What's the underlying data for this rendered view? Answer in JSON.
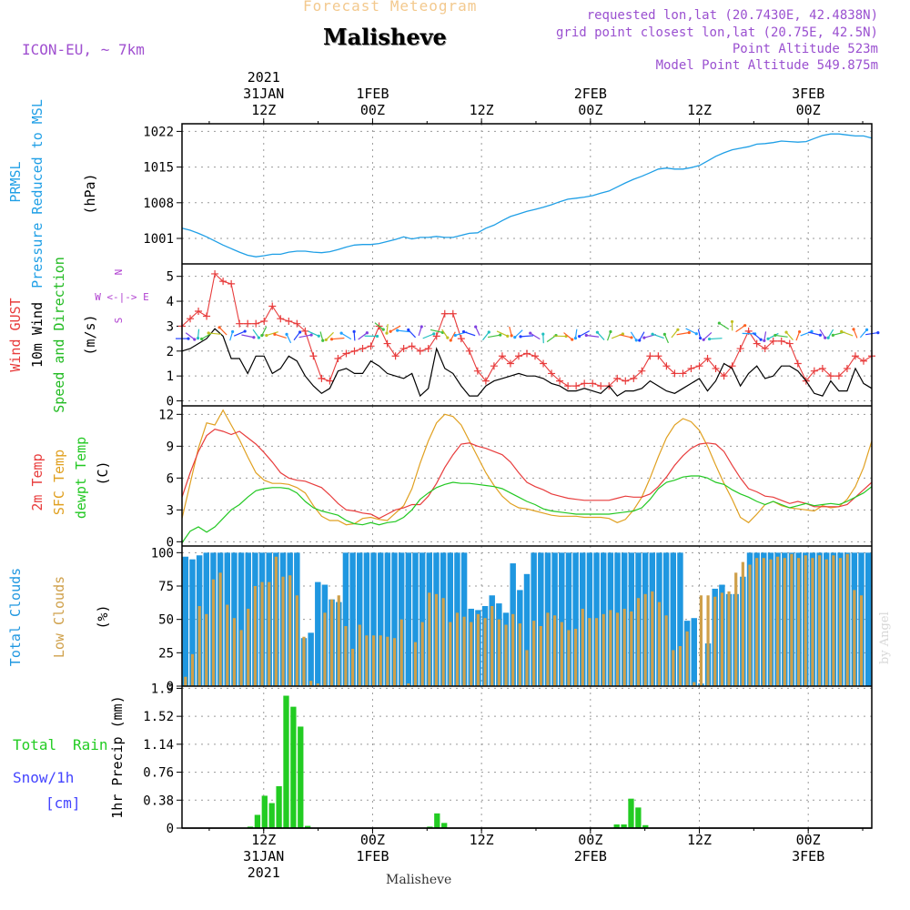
{
  "header": {
    "subtitle": "Forecast Meteogram",
    "title": "Malisheve",
    "model": "ICON-EU, ~ 7km",
    "requested": "requested lon,lat (20.7430E, 42.4838N)",
    "gridpoint": "grid point closest lon,lat (20.75E, 42.5N)",
    "point_alt": "Point Altitude 523m",
    "model_alt": "Model Point Altitude 549.875m",
    "footer": "Malisheve",
    "credit": "by Angel"
  },
  "colors": {
    "pressure": "#1f9fe6",
    "gust": "#e83c3c",
    "wind": "#000000",
    "wind_dir_label": "#22bb22",
    "compass": "#b040d0",
    "temp2m": "#e83c3c",
    "sfc": "#e0a020",
    "dewpt": "#22c822",
    "total_clouds": "#1f97e0",
    "low_clouds": "#cfa04a",
    "rain": "#22cc22",
    "snow": "#4444ff",
    "meta": "#9a50d0",
    "grid": "#9a9a9a"
  },
  "chart_data": [
    {
      "type": "x-axis",
      "top_labels": [
        {
          "lines": [
            "2021",
            "31JAN",
            "12Z"
          ]
        },
        {
          "lines": [
            "1FEB",
            "00Z"
          ]
        },
        {
          "lines": [
            "12Z"
          ]
        },
        {
          "lines": [
            "2FEB",
            "00Z"
          ]
        },
        {
          "lines": [
            "12Z"
          ]
        },
        {
          "lines": [
            "3FEB",
            "00Z"
          ]
        }
      ],
      "bottom_labels": [
        {
          "lines": [
            "12Z",
            "31JAN",
            "2021"
          ]
        },
        {
          "lines": [
            "00Z",
            "1FEB"
          ]
        },
        {
          "lines": [
            "12Z"
          ]
        },
        {
          "lines": [
            "00Z",
            "2FEB"
          ]
        },
        {
          "lines": [
            "12Z"
          ]
        },
        {
          "lines": [
            "00Z",
            "3FEB"
          ]
        }
      ],
      "tick_hours": [
        12,
        24,
        36,
        48,
        60,
        72
      ],
      "hour_range": [
        3,
        79
      ]
    },
    {
      "type": "line",
      "panel": "pressure",
      "ylabel_lines": [
        "PRMSL",
        "Pressure Reduced to MSL",
        "(hPa)"
      ],
      "ylim": [
        996,
        1023.5
      ],
      "ticks": [
        1001,
        1008,
        1015,
        1022
      ],
      "series": [
        {
          "values": [
            1003.0,
            1002.6,
            1002.0,
            1001.3,
            1000.5,
            999.7,
            999.0,
            998.3,
            997.7,
            997.4,
            997.6,
            997.9,
            997.9,
            998.3,
            998.5,
            998.5,
            998.3,
            998.2,
            998.4,
            998.8,
            999.3,
            999.7,
            999.8,
            999.8,
            1000.0,
            1000.4,
            1000.8,
            1001.3,
            1000.9,
            1001.2,
            1001.2,
            1001.4,
            1001.2,
            1001.2,
            1001.6,
            1002.0,
            1002.1,
            1003.0,
            1003.6,
            1004.5,
            1005.3,
            1005.8,
            1006.3,
            1006.7,
            1007.1,
            1007.6,
            1008.2,
            1008.7,
            1008.9,
            1009.1,
            1009.4,
            1009.9,
            1010.3,
            1011.1,
            1011.9,
            1012.6,
            1013.2,
            1013.9,
            1014.6,
            1014.8,
            1014.6,
            1014.6,
            1014.9,
            1015.3,
            1016.2,
            1017.1,
            1017.8,
            1018.4,
            1018.7,
            1019.0,
            1019.5,
            1019.6,
            1019.8,
            1020.1,
            1020.0,
            1019.9,
            1020.0,
            1020.6,
            1021.2,
            1021.5,
            1021.5,
            1021.3,
            1021.1,
            1021.1,
            1020.7
          ]
        }
      ]
    },
    {
      "type": "line",
      "panel": "wind",
      "ylabel_lines": [
        "Wind GUST",
        "10m Wind",
        "Speed and Direction",
        "(m/s)"
      ],
      "compass": [
        "N",
        "W <-|-> E",
        "S"
      ],
      "ylim": [
        -0.2,
        5.5
      ],
      "ticks": [
        0,
        1,
        2,
        3,
        4,
        5
      ],
      "series": [
        {
          "name": "Wind GUST",
          "values": [
            3.0,
            3.3,
            3.6,
            3.4,
            5.1,
            4.8,
            4.7,
            3.1,
            3.1,
            3.1,
            3.2,
            3.8,
            3.3,
            3.2,
            3.1,
            2.8,
            1.8,
            0.9,
            0.8,
            1.7,
            1.9,
            2.0,
            2.1,
            2.2,
            3.0,
            2.3,
            1.8,
            2.1,
            2.2,
            2.0,
            2.1,
            2.6,
            3.5,
            3.5,
            2.5,
            2.0,
            1.2,
            0.8,
            1.4,
            1.8,
            1.5,
            1.8,
            1.9,
            1.8,
            1.5,
            1.1,
            0.8,
            0.6,
            0.6,
            0.7,
            0.7,
            0.6,
            0.6,
            0.9,
            0.8,
            0.9,
            1.2,
            1.8,
            1.8,
            1.4,
            1.1,
            1.1,
            1.3,
            1.4,
            1.7,
            1.3,
            1.0,
            1.4,
            2.1,
            2.8,
            2.3,
            2.1,
            2.4,
            2.4,
            2.3,
            1.5,
            0.8,
            1.2,
            1.3,
            1.0,
            1.0,
            1.3,
            1.8,
            1.6,
            1.8
          ]
        },
        {
          "name": "10m Wind",
          "values": [
            2.0,
            2.1,
            2.3,
            2.5,
            2.9,
            2.6,
            1.7,
            1.7,
            1.1,
            1.8,
            1.8,
            1.1,
            1.3,
            1.8,
            1.6,
            1.0,
            0.6,
            0.3,
            0.5,
            1.2,
            1.3,
            1.1,
            1.1,
            1.6,
            1.4,
            1.1,
            1.0,
            0.9,
            1.1,
            0.2,
            0.5,
            2.1,
            1.3,
            1.1,
            0.6,
            0.2,
            0.2,
            0.6,
            0.8,
            0.9,
            1.0,
            1.1,
            1.0,
            1.0,
            0.9,
            0.7,
            0.6,
            0.4,
            0.4,
            0.5,
            0.4,
            0.3,
            0.6,
            0.2,
            0.4,
            0.4,
            0.5,
            0.8,
            0.6,
            0.4,
            0.3,
            0.5,
            0.7,
            0.9,
            0.4,
            0.8,
            1.5,
            1.3,
            0.6,
            1.1,
            1.4,
            0.9,
            1.0,
            1.4,
            1.4,
            1.2,
            0.8,
            0.3,
            0.2,
            0.8,
            0.4,
            0.4,
            1.3,
            0.7,
            0.5
          ]
        },
        {
          "name": "Speed and Direction",
          "values": [
            2.5,
            2.6,
            2.7,
            2.6,
            2.7,
            2.8,
            2.6,
            2.7,
            2.6,
            2.7,
            2.8,
            2.7,
            2.6,
            2.5,
            2.6,
            2.6,
            2.7,
            2.6,
            2.6,
            2.5,
            2.6,
            2.6,
            2.6,
            2.6,
            3.0,
            2.9,
            2.9,
            2.8,
            2.7,
            2.8,
            2.6,
            2.8,
            2.7,
            2.6,
            2.7,
            2.7,
            2.8,
            2.6,
            2.6,
            2.7,
            2.8,
            2.7,
            2.6,
            2.6,
            2.5,
            2.5,
            2.6,
            2.6,
            2.7,
            2.7,
            2.6,
            2.6,
            2.6,
            2.6,
            2.6,
            2.6,
            2.6,
            2.6,
            2.6,
            2.5,
            2.7,
            2.7,
            2.8,
            2.7,
            2.6,
            2.5,
            3.0,
            3.0,
            2.9,
            2.7,
            2.6,
            2.6,
            2.6,
            2.6,
            2.6,
            2.6,
            2.7,
            2.7,
            2.7,
            2.7,
            2.7,
            2.7,
            2.7,
            2.7,
            2.7
          ]
        }
      ]
    },
    {
      "type": "line",
      "panel": "temperature",
      "ylabel_lines": [
        "2m Temp",
        "SFC Temp",
        "dewpt Temp",
        "(C)"
      ],
      "ylim": [
        -0.4,
        12.8
      ],
      "ticks": [
        0,
        3,
        6,
        9,
        12
      ],
      "series": [
        {
          "name": "2m Temp",
          "values": [
            4.2,
            6.5,
            8.5,
            10.0,
            10.6,
            10.4,
            10.1,
            10.4,
            9.8,
            9.2,
            8.4,
            7.5,
            6.5,
            6.0,
            5.8,
            5.7,
            5.4,
            5.1,
            4.4,
            3.6,
            3.0,
            2.9,
            2.7,
            2.6,
            2.2,
            2.6,
            3.0,
            3.2,
            3.5,
            3.5,
            4.3,
            5.5,
            7.0,
            8.2,
            9.2,
            9.3,
            9.0,
            8.8,
            8.5,
            8.2,
            7.5,
            6.5,
            5.6,
            5.2,
            4.9,
            4.5,
            4.3,
            4.1,
            4.0,
            3.9,
            3.9,
            3.9,
            3.9,
            4.1,
            4.3,
            4.2,
            4.2,
            4.5,
            5.2,
            6.1,
            7.2,
            8.1,
            8.8,
            9.2,
            9.3,
            9.2,
            8.5,
            7.2,
            6.0,
            5.0,
            4.7,
            4.3,
            4.2,
            3.9,
            3.6,
            3.8,
            3.6,
            3.3,
            3.3,
            3.3,
            3.3,
            3.5,
            4.2,
            4.9,
            5.6
          ]
        },
        {
          "name": "SFC Temp",
          "values": [
            2.2,
            5.5,
            8.8,
            11.2,
            11.0,
            12.4,
            11.0,
            9.6,
            8.0,
            6.5,
            5.8,
            5.5,
            5.5,
            5.4,
            5.1,
            4.6,
            3.4,
            2.4,
            2.0,
            2.0,
            1.6,
            1.7,
            2.2,
            2.3,
            2.1,
            2.0,
            2.7,
            3.4,
            5.0,
            7.4,
            9.5,
            11.2,
            12.0,
            11.8,
            11.0,
            9.5,
            8.0,
            6.5,
            5.3,
            4.3,
            3.6,
            3.2,
            3.1,
            2.9,
            2.7,
            2.5,
            2.4,
            2.4,
            2.4,
            2.3,
            2.3,
            2.3,
            2.2,
            1.8,
            2.1,
            3.0,
            4.2,
            6.0,
            8.0,
            9.8,
            11.0,
            11.6,
            11.3,
            10.5,
            9.0,
            7.2,
            5.5,
            4.0,
            2.3,
            1.8,
            2.6,
            3.5,
            3.8,
            3.4,
            3.2,
            3.1,
            3.0,
            2.9,
            3.4,
            3.2,
            3.3,
            4.0,
            5.2,
            7.0,
            9.5
          ]
        },
        {
          "name": "dewpt Temp",
          "values": [
            -0.1,
            1.0,
            1.4,
            0.9,
            1.4,
            2.2,
            3.0,
            3.5,
            4.2,
            4.8,
            5.0,
            5.1,
            5.1,
            5.0,
            4.6,
            3.8,
            3.2,
            2.9,
            2.7,
            2.5,
            2.0,
            1.7,
            1.6,
            1.8,
            1.6,
            1.8,
            1.9,
            2.3,
            3.0,
            4.0,
            4.6,
            5.1,
            5.4,
            5.6,
            5.5,
            5.5,
            5.4,
            5.3,
            5.2,
            5.0,
            4.6,
            4.2,
            3.8,
            3.5,
            3.1,
            2.9,
            2.8,
            2.7,
            2.6,
            2.6,
            2.6,
            2.6,
            2.6,
            2.7,
            2.8,
            2.9,
            3.2,
            4.0,
            5.0,
            5.6,
            5.8,
            6.1,
            6.2,
            6.2,
            6.0,
            5.6,
            5.4,
            4.9,
            4.5,
            4.2,
            3.8,
            3.5,
            3.8,
            3.5,
            3.2,
            3.4,
            3.6,
            3.4,
            3.5,
            3.6,
            3.5,
            3.8,
            4.2,
            4.6,
            5.2
          ]
        }
      ]
    },
    {
      "type": "bar",
      "panel": "clouds",
      "ylabel_lines": [
        "Total Clouds",
        "Low Clouds",
        "(%)"
      ],
      "ylim": [
        0,
        105
      ],
      "ticks": [
        0,
        25,
        50,
        75,
        100
      ],
      "series": [
        {
          "name": "Total Clouds",
          "values": [
            97,
            95,
            98,
            100,
            100,
            100,
            100,
            100,
            100,
            100,
            100,
            100,
            100,
            100,
            100,
            100,
            100,
            36,
            40,
            78,
            76,
            65,
            63,
            100,
            100,
            100,
            100,
            100,
            100,
            100,
            100,
            100,
            100,
            100,
            100,
            100,
            100,
            100,
            100,
            100,
            100,
            58,
            57,
            60,
            68,
            62,
            55,
            92,
            72,
            84,
            100,
            100,
            100,
            100,
            100,
            100,
            100,
            100,
            100,
            100,
            100,
            100,
            100,
            100,
            100,
            100,
            100,
            100,
            100,
            100,
            100,
            100,
            49,
            51,
            2,
            32,
            73,
            76,
            69,
            69,
            82,
            100,
            100,
            100,
            100,
            100,
            100,
            100,
            100,
            100,
            100,
            100,
            100,
            100,
            100,
            100,
            100,
            100,
            100
          ]
        },
        {
          "name": "Low Clouds",
          "values": [
            7,
            24,
            60,
            54,
            80,
            85,
            61,
            51,
            42,
            58,
            75,
            78,
            78,
            97,
            82,
            83,
            68,
            37,
            4,
            2,
            55,
            65,
            68,
            45,
            28,
            46,
            38,
            38,
            38,
            37,
            36,
            50,
            2,
            33,
            48,
            70,
            69,
            66,
            48,
            55,
            52,
            48,
            54,
            51,
            60,
            50,
            46,
            54,
            47,
            27,
            49,
            45,
            55,
            53,
            48,
            42,
            43,
            58,
            51,
            51,
            54,
            57,
            55,
            58,
            56,
            66,
            69,
            71,
            63,
            53,
            27,
            30,
            41,
            3,
            68,
            68,
            67,
            70,
            71,
            85,
            93,
            91,
            96,
            96,
            95,
            97,
            96,
            99,
            96,
            98,
            96,
            98,
            95,
            98,
            96,
            99,
            72,
            68
          ]
        }
      ]
    },
    {
      "type": "bar",
      "panel": "precipitation",
      "ylabel_lines": [
        "Total",
        "Rain",
        "Snow/1h",
        "[cm]",
        "1hr Precip (mm)"
      ],
      "ylim": [
        0,
        1.93
      ],
      "ticks": [
        0,
        0.38,
        0.76,
        1.14,
        1.52,
        1.9
      ],
      "series": [
        {
          "name": "Total Rain",
          "values": [
            0,
            0,
            0,
            0,
            0,
            0,
            0,
            0,
            0,
            0.02,
            0.18,
            0.44,
            0.34,
            0.57,
            1.8,
            1.65,
            1.38,
            0.03,
            0,
            0,
            0,
            0,
            0,
            0,
            0,
            0,
            0,
            0,
            0,
            0,
            0,
            0,
            0,
            0,
            0.02,
            0.2,
            0.07,
            0,
            0,
            0,
            0,
            0,
            0,
            0,
            0,
            0,
            0,
            0,
            0,
            0,
            0,
            0,
            0,
            0,
            0,
            0,
            0,
            0,
            0,
            0,
            0.05,
            0.05,
            0.4,
            0.28,
            0.04,
            0,
            0,
            0,
            0,
            0,
            0,
            0,
            0,
            0,
            0,
            0,
            0,
            0,
            0,
            0,
            0,
            0,
            0,
            0,
            0,
            0,
            0,
            0,
            0,
            0,
            0,
            0,
            0,
            0,
            0,
            0
          ]
        }
      ]
    }
  ]
}
